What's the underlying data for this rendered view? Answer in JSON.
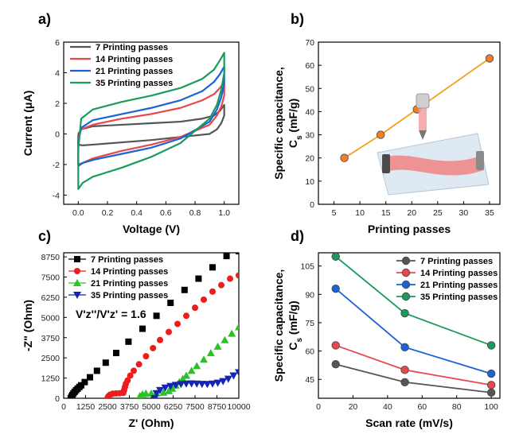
{
  "chart_data": [
    {
      "id": "a",
      "panel_label": "a)",
      "type": "line",
      "xlabel": "Voltage (V)",
      "ylabel": "Current (μA)",
      "xlim": [
        -0.1,
        1.1
      ],
      "ylim": [
        -4.6,
        6
      ],
      "xticks": [
        0.0,
        0.2,
        0.4,
        0.6,
        0.8,
        1.0
      ],
      "xtick_labels": [
        "0.0",
        "0.2",
        "0.4",
        "0.6",
        "0.8",
        "1.0"
      ],
      "yticks": [
        -4,
        -2,
        0,
        2,
        4,
        6
      ],
      "ytick_labels": [
        "-4",
        "-2",
        "0",
        "2",
        "4",
        "6"
      ],
      "legend_position": "top-left",
      "series": [
        {
          "name": "7 Printing passes",
          "color": "#555555",
          "x": [
            0.0,
            0.02,
            0.1,
            0.3,
            0.5,
            0.7,
            0.85,
            0.93,
            0.97,
            1.0,
            1.0,
            0.98,
            0.95,
            0.9,
            0.7,
            0.5,
            0.3,
            0.1,
            0.03,
            0.0,
            0.0
          ],
          "y": [
            0.0,
            0.3,
            0.5,
            0.6,
            0.7,
            0.8,
            1.0,
            1.2,
            1.5,
            1.9,
            1.2,
            0.7,
            0.3,
            0.0,
            -0.2,
            -0.4,
            -0.55,
            -0.7,
            -0.75,
            -0.7,
            0.0
          ]
        },
        {
          "name": "14 Printing passes",
          "color": "#e8474d",
          "x": [
            0.0,
            0.02,
            0.1,
            0.3,
            0.5,
            0.7,
            0.85,
            0.93,
            0.97,
            1.0,
            1.0,
            0.98,
            0.95,
            0.9,
            0.7,
            0.5,
            0.3,
            0.1,
            0.03,
            0.0,
            0.0
          ],
          "y": [
            -0.3,
            0.3,
            0.6,
            1.0,
            1.3,
            1.7,
            2.2,
            2.6,
            3.0,
            3.4,
            2.5,
            1.8,
            1.2,
            0.6,
            -0.2,
            -0.7,
            -1.1,
            -1.6,
            -1.9,
            -2.0,
            -0.3
          ]
        },
        {
          "name": "21 Printing passes",
          "color": "#1a63d6",
          "x": [
            0.0,
            0.02,
            0.1,
            0.3,
            0.5,
            0.7,
            0.85,
            0.93,
            0.97,
            1.0,
            1.0,
            0.98,
            0.95,
            0.9,
            0.7,
            0.5,
            0.3,
            0.1,
            0.03,
            0.0,
            0.0
          ],
          "y": [
            -0.5,
            0.4,
            0.9,
            1.3,
            1.7,
            2.2,
            2.8,
            3.4,
            3.9,
            4.4,
            3.3,
            2.4,
            1.6,
            0.8,
            -0.3,
            -0.9,
            -1.3,
            -1.7,
            -1.9,
            -2.1,
            -0.5
          ]
        },
        {
          "name": "35 Printing passes",
          "color": "#1c9a5c",
          "x": [
            0.0,
            0.02,
            0.1,
            0.3,
            0.5,
            0.7,
            0.85,
            0.93,
            0.97,
            1.0,
            1.0,
            0.98,
            0.95,
            0.9,
            0.7,
            0.5,
            0.3,
            0.1,
            0.03,
            0.0,
            0.0
          ],
          "y": [
            -1.0,
            1.0,
            1.6,
            2.1,
            2.5,
            3.0,
            3.6,
            4.2,
            4.8,
            5.3,
            4.0,
            2.9,
            1.9,
            1.0,
            -0.6,
            -1.5,
            -2.2,
            -2.8,
            -3.2,
            -3.6,
            -1.0
          ]
        }
      ]
    },
    {
      "id": "b",
      "panel_label": "b)",
      "type": "line",
      "xlabel": "Printing passes",
      "ylabel_line1": "Specific capacitance,",
      "ylabel_line2": "C",
      "ylabel_sub": "s",
      "ylabel_line2_rest": " (mF/g)",
      "xlim": [
        2,
        37
      ],
      "ylim": [
        0,
        70
      ],
      "xticks": [
        5,
        10,
        15,
        20,
        25,
        30,
        35
      ],
      "xtick_labels": [
        "5",
        "10",
        "15",
        "20",
        "25",
        "30",
        "35"
      ],
      "yticks": [
        0,
        10,
        20,
        30,
        40,
        50,
        60,
        70
      ],
      "ytick_labels": [
        "0",
        "10",
        "20",
        "30",
        "40",
        "50",
        "60",
        "70"
      ],
      "series": [
        {
          "name": "",
          "color": "#f0a21f",
          "marker_color": "#f07e2a",
          "x": [
            7,
            14,
            21,
            35
          ],
          "y": [
            20,
            30,
            41,
            63
          ]
        }
      ]
    },
    {
      "id": "c",
      "panel_label": "c)",
      "type": "scatter",
      "xlabel": "Z' (Ohm)",
      "ylabel": "-Z\" (Ohm)",
      "xlim": [
        0,
        10000
      ],
      "ylim": [
        0,
        9000
      ],
      "xticks": [
        0,
        1250,
        2500,
        3750,
        5000,
        6250,
        7500,
        8750,
        10000
      ],
      "xtick_labels": [
        "0",
        "1250",
        "2500",
        "3750",
        "5000",
        "6250",
        "7500",
        "8750",
        "10000"
      ],
      "yticks": [
        0,
        1250,
        2500,
        3750,
        5000,
        6250,
        7500,
        8750
      ],
      "ytick_labels": [
        "0",
        "1250",
        "2500",
        "3750",
        "5000",
        "6250",
        "7500",
        "8750"
      ],
      "annotation": {
        "text": "V'z''/V'z' = 1.6"
      },
      "legend_position": "top-left",
      "series": [
        {
          "name": "7 Printing passes",
          "color": "#000000",
          "marker": "square",
          "x": [
            400,
            450,
            500,
            560,
            630,
            710,
            800,
            900,
            1000,
            1200,
            1500,
            1900,
            2400,
            3000,
            3700,
            4500,
            5300,
            6100,
            6900,
            7700,
            8500,
            9300,
            10000
          ],
          "y": [
            0,
            100,
            200,
            300,
            400,
            500,
            600,
            700,
            800,
            1000,
            1300,
            1700,
            2200,
            2800,
            3500,
            4300,
            5100,
            5900,
            6700,
            7400,
            8100,
            8800,
            9100
          ]
        },
        {
          "name": "14 Printing passes",
          "color": "#ee1c1c",
          "marker": "circle",
          "x": [
            2500,
            2550,
            2650,
            2800,
            3000,
            3200,
            3400,
            3450,
            3500,
            3550,
            3650,
            3800,
            4000,
            4300,
            4700,
            5100,
            5500,
            6000,
            6500,
            7000,
            7500,
            8000,
            8500,
            9000,
            9500,
            10000
          ],
          "y": [
            0,
            120,
            220,
            280,
            300,
            310,
            330,
            500,
            700,
            900,
            1100,
            1400,
            1700,
            2100,
            2600,
            3100,
            3600,
            4100,
            4600,
            5100,
            5600,
            6100,
            6600,
            7000,
            7400,
            7600
          ]
        },
        {
          "name": "21 Printing passes",
          "color": "#27c424",
          "marker": "triangle-up",
          "x": [
            4300,
            4350,
            4500,
            4700,
            5000,
            5300,
            5700,
            6000,
            6200,
            6400,
            6600,
            6800,
            7000,
            7300,
            7600,
            8000,
            8400,
            8800,
            9200,
            9600,
            10000
          ],
          "y": [
            0,
            150,
            250,
            300,
            300,
            310,
            350,
            450,
            600,
            800,
            1000,
            1200,
            1400,
            1700,
            2000,
            2400,
            2800,
            3200,
            3600,
            4000,
            4400
          ]
        },
        {
          "name": "35 Printing passes",
          "color": "#1424b4",
          "marker": "triangle-down",
          "x": [
            5200,
            5300,
            5500,
            5800,
            6100,
            6400,
            6700,
            7000,
            7300,
            7600,
            7900,
            8200,
            8500,
            8800,
            9100,
            9400,
            9700,
            10000
          ],
          "y": [
            0,
            300,
            500,
            650,
            750,
            820,
            870,
            900,
            910,
            900,
            880,
            870,
            900,
            950,
            1050,
            1200,
            1400,
            1600
          ]
        }
      ]
    },
    {
      "id": "d",
      "panel_label": "d)",
      "type": "line",
      "xlabel": "Scan rate (mV/s)",
      "ylabel_line1": "Specific capacitance,",
      "ylabel_line2": "C",
      "ylabel_sub": "s",
      "ylabel_line2_rest": " (mF/g)",
      "xlim": [
        0,
        105
      ],
      "ylim": [
        35,
        112
      ],
      "xticks": [
        0,
        20,
        40,
        60,
        80,
        100
      ],
      "xtick_labels": [
        "0",
        "20",
        "40",
        "60",
        "80",
        "100"
      ],
      "yticks": [
        45,
        60,
        75,
        90,
        105
      ],
      "ytick_labels": [
        "45",
        "60",
        "75",
        "90",
        "105"
      ],
      "legend_position": "top-right",
      "series": [
        {
          "name": "7 Printing passes",
          "color": "#555555",
          "x": [
            10,
            50,
            100
          ],
          "y": [
            53,
            43.5,
            38
          ]
        },
        {
          "name": "14 Printing passes",
          "color": "#e8474d",
          "x": [
            10,
            50,
            100
          ],
          "y": [
            63,
            50,
            42
          ]
        },
        {
          "name": "21 Printing passes",
          "color": "#1a63d6",
          "x": [
            10,
            50,
            100
          ],
          "y": [
            93,
            62,
            48
          ]
        },
        {
          "name": "35 Printing passes",
          "color": "#1c9a5c",
          "x": [
            10,
            50,
            100
          ],
          "y": [
            110,
            80,
            63
          ]
        }
      ]
    }
  ]
}
